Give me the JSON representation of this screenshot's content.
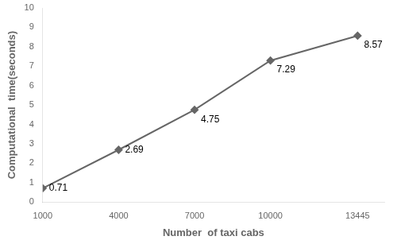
{
  "chart_data": {
    "type": "line",
    "x": [
      1000,
      4000,
      7000,
      10000,
      13445
    ],
    "values": [
      0.71,
      2.69,
      4.75,
      7.29,
      8.57
    ],
    "xlabel": "Number  of taxi cabs",
    "ylabel": "Computational  time(seconds)",
    "xlim": [
      1000,
      14500
    ],
    "ylim": [
      0,
      10
    ],
    "xticks": [
      1000,
      4000,
      7000,
      10000,
      13445
    ],
    "yticks": [
      0,
      1,
      2,
      3,
      4,
      5,
      6,
      7,
      8,
      9,
      10
    ],
    "color": "#666666",
    "marker": "diamond",
    "data_labels": true,
    "grid": false
  }
}
